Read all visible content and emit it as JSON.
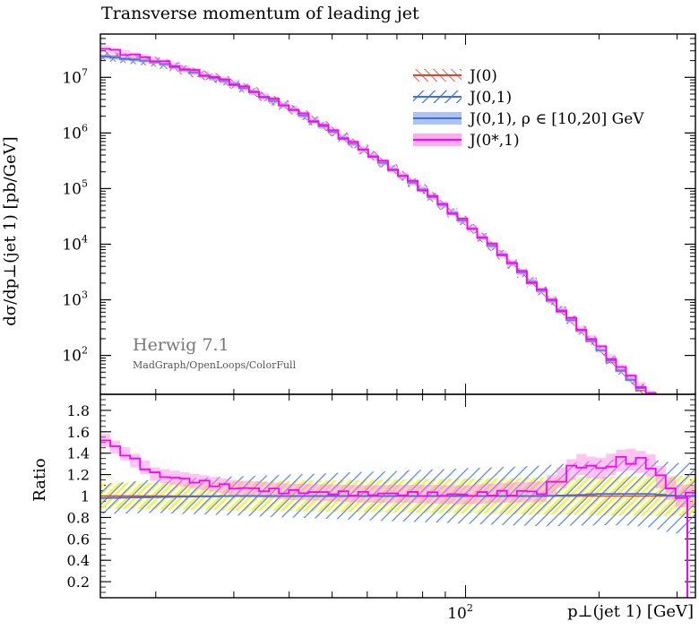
{
  "chart_data": [
    {
      "type": "line",
      "title": "Transverse momentum of leading jet",
      "ylabel": "dσ/dp⊥(jet 1) [pb/GeV]",
      "yscale": "log",
      "ylim": [
        20,
        60000000
      ],
      "y_ticks": [
        "10^2",
        "10^3",
        "10^4",
        "10^5",
        "10^6",
        "10^7"
      ],
      "x": [
        15,
        20,
        30,
        40,
        50,
        60,
        80,
        100,
        120,
        150,
        180,
        200,
        230,
        260,
        300
      ],
      "series": [
        {
          "name": "J(0)",
          "color": "#e8402f",
          "style": "hatched-band",
          "values": [
            25000000,
            19000000,
            7800000,
            2900000,
            1100000,
            460000,
            98000,
            24000,
            6800,
            1300,
            310,
            130,
            42,
            18,
            8
          ]
        },
        {
          "name": "J(0,1)",
          "color": "#3a6fe8",
          "style": "hatched-band",
          "values": [
            24000000,
            19000000,
            7700000,
            2850000,
            1080000,
            450000,
            97000,
            24000,
            6900,
            1350,
            320,
            135,
            44,
            19,
            8
          ]
        },
        {
          "name": "J(0,1), ρ ∈ [10,20] GeV",
          "color": "#3a6fe8",
          "style": "solid-band",
          "values": [
            24000000,
            19000000,
            7700000,
            2850000,
            1080000,
            450000,
            97000,
            24000,
            6900,
            1350,
            320,
            135,
            44,
            19,
            8
          ]
        },
        {
          "name": "J(0*,1)",
          "color": "#ff00ff",
          "style": "histogram",
          "values": [
            34000000,
            20500000,
            7900000,
            2950000,
            1120000,
            460000,
            99000,
            24500,
            7100,
            1380,
            330,
            150,
            50,
            21,
            9
          ]
        }
      ],
      "legend_position": "top-right",
      "annotations": [
        "Herwig 7.1",
        "MadGraph/OpenLoops/ColorFull"
      ]
    },
    {
      "type": "line",
      "ylabel": "Ratio",
      "xlabel": "p⊥(jet 1) [GeV]",
      "xscale": "log",
      "ylim": [
        0.05,
        1.95
      ],
      "y_ticks": [
        "0.2",
        "0.4",
        "0.6",
        "0.8",
        "1",
        "1.2",
        "1.4",
        "1.6",
        "1.8"
      ],
      "x_ticks": [
        "10^2"
      ],
      "x": [
        15,
        20,
        30,
        40,
        50,
        60,
        80,
        100,
        120,
        150,
        180,
        200,
        230,
        260,
        300
      ],
      "series": [
        {
          "name": "J(0)",
          "values": [
            1.0,
            1.0,
            1.0,
            1.0,
            1.0,
            1.0,
            1.0,
            1.0,
            1.0,
            1.0,
            1.0,
            1.0,
            1.0,
            1.0,
            1.0
          ]
        },
        {
          "name": "J(0,1)",
          "values": [
            0.97,
            1.0,
            1.0,
            1.0,
            1.0,
            1.0,
            1.0,
            1.0,
            1.0,
            1.0,
            1.02,
            1.03,
            1.04,
            1.03,
            0.98
          ]
        },
        {
          "name": "J(0,1), ρ ∈ [10,20] GeV",
          "values": [
            0.98,
            0.99,
            1.0,
            1.0,
            1.0,
            1.0,
            1.0,
            1.0,
            1.0,
            1.0,
            1.01,
            1.02,
            1.02,
            1.02,
            1.0
          ]
        },
        {
          "name": "J(0*,1)",
          "values": [
            1.55,
            1.2,
            1.08,
            1.04,
            1.03,
            1.02,
            1.02,
            1.01,
            1.03,
            1.04,
            1.3,
            1.25,
            1.35,
            1.3,
            1.0
          ]
        }
      ]
    }
  ]
}
